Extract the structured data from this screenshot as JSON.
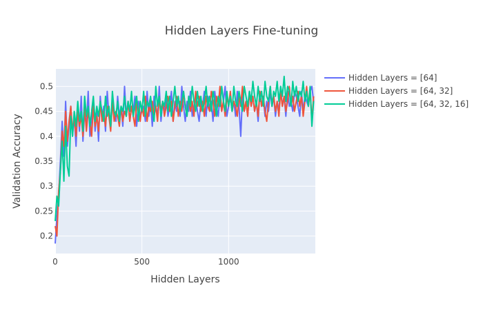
{
  "chart_data": {
    "type": "line",
    "title": "Hidden Layers Fine-tuning",
    "xlabel": "Hidden Layers",
    "ylabel": "Validation Accuracy",
    "xlim": [
      0,
      1500
    ],
    "ylim": [
      0.165,
      0.535
    ],
    "x_ticks": [
      0,
      500,
      1000
    ],
    "y_ticks": [
      0.2,
      0.25,
      0.3,
      0.35,
      0.4,
      0.45,
      0.5
    ],
    "x_tick_labels": [
      "0",
      "500",
      "1000"
    ],
    "y_tick_labels": [
      "0.2",
      "0.25",
      "0.3",
      "0.35",
      "0.4",
      "0.45",
      "0.5"
    ],
    "grid": true,
    "legend_position": "top-right",
    "background_color": "#e5ecf6",
    "x": [
      0,
      10,
      20,
      30,
      40,
      50,
      60,
      70,
      80,
      90,
      100,
      110,
      120,
      130,
      140,
      150,
      160,
      170,
      180,
      190,
      200,
      210,
      220,
      230,
      240,
      250,
      260,
      270,
      280,
      290,
      300,
      310,
      320,
      330,
      340,
      350,
      360,
      370,
      380,
      390,
      400,
      410,
      420,
      430,
      440,
      450,
      460,
      470,
      480,
      490,
      500,
      510,
      520,
      530,
      540,
      550,
      560,
      570,
      580,
      590,
      600,
      610,
      620,
      630,
      640,
      650,
      660,
      670,
      680,
      690,
      700,
      710,
      720,
      730,
      740,
      750,
      760,
      770,
      780,
      790,
      800,
      810,
      820,
      830,
      840,
      850,
      860,
      870,
      880,
      890,
      900,
      910,
      920,
      930,
      940,
      950,
      960,
      970,
      980,
      990,
      1000,
      1010,
      1020,
      1030,
      1040,
      1050,
      1060,
      1070,
      1080,
      1090,
      1100,
      1110,
      1120,
      1130,
      1140,
      1150,
      1160,
      1170,
      1180,
      1190,
      1200,
      1210,
      1220,
      1230,
      1240,
      1250,
      1260,
      1270,
      1280,
      1290,
      1300,
      1310,
      1320,
      1330,
      1340,
      1350,
      1360,
      1370,
      1380,
      1390,
      1400,
      1410,
      1420,
      1430,
      1440,
      1450,
      1460,
      1470,
      1480,
      1490
    ],
    "series": [
      {
        "name": "Hidden Layers = [64]",
        "color": "#636efa",
        "values": [
          0.185,
          0.24,
          0.28,
          0.35,
          0.43,
          0.36,
          0.47,
          0.38,
          0.42,
          0.46,
          0.4,
          0.44,
          0.38,
          0.46,
          0.41,
          0.48,
          0.39,
          0.45,
          0.42,
          0.49,
          0.4,
          0.44,
          0.47,
          0.41,
          0.45,
          0.39,
          0.48,
          0.43,
          0.46,
          0.41,
          0.49,
          0.44,
          0.42,
          0.47,
          0.45,
          0.43,
          0.48,
          0.44,
          0.46,
          0.42,
          0.5,
          0.44,
          0.47,
          0.43,
          0.46,
          0.45,
          0.48,
          0.42,
          0.47,
          0.44,
          0.45,
          0.46,
          0.43,
          0.49,
          0.44,
          0.47,
          0.42,
          0.48,
          0.46,
          0.44,
          0.5,
          0.43,
          0.47,
          0.45,
          0.48,
          0.44,
          0.46,
          0.49,
          0.43,
          0.47,
          0.45,
          0.48,
          0.44,
          0.5,
          0.46,
          0.43,
          0.47,
          0.45,
          0.49,
          0.44,
          0.46,
          0.48,
          0.45,
          0.43,
          0.47,
          0.46,
          0.49,
          0.44,
          0.48,
          0.45,
          0.47,
          0.43,
          0.49,
          0.46,
          0.44,
          0.48,
          0.45,
          0.47,
          0.5,
          0.44,
          0.46,
          0.48,
          0.45,
          0.47,
          0.44,
          0.49,
          0.46,
          0.4,
          0.48,
          0.45,
          0.47,
          0.44,
          0.49,
          0.46,
          0.48,
          0.45,
          0.47,
          0.43,
          0.49,
          0.46,
          0.48,
          0.44,
          0.47,
          0.45,
          0.49,
          0.46,
          0.48,
          0.44,
          0.47,
          0.45,
          0.5,
          0.46,
          0.48,
          0.44,
          0.49,
          0.46,
          0.47,
          0.45,
          0.49,
          0.48,
          0.46,
          0.44,
          0.49,
          0.45,
          0.48,
          0.47,
          0.46,
          0.49,
          0.5,
          0.47
        ]
      },
      {
        "name": "Hidden Layers = [64, 32]",
        "color": "#ef553b",
        "values": [
          0.22,
          0.2,
          0.29,
          0.33,
          0.41,
          0.38,
          0.45,
          0.39,
          0.43,
          0.46,
          0.41,
          0.44,
          0.4,
          0.45,
          0.42,
          0.44,
          0.4,
          0.46,
          0.41,
          0.45,
          0.43,
          0.4,
          0.46,
          0.42,
          0.44,
          0.41,
          0.47,
          0.43,
          0.45,
          0.42,
          0.46,
          0.44,
          0.41,
          0.47,
          0.43,
          0.45,
          0.44,
          0.42,
          0.46,
          0.43,
          0.45,
          0.44,
          0.47,
          0.43,
          0.46,
          0.44,
          0.42,
          0.47,
          0.45,
          0.43,
          0.46,
          0.44,
          0.48,
          0.43,
          0.46,
          0.45,
          0.47,
          0.44,
          0.46,
          0.43,
          0.48,
          0.45,
          0.47,
          0.44,
          0.46,
          0.48,
          0.45,
          0.47,
          0.43,
          0.46,
          0.48,
          0.44,
          0.47,
          0.45,
          0.49,
          0.46,
          0.44,
          0.48,
          0.45,
          0.47,
          0.44,
          0.49,
          0.46,
          0.48,
          0.45,
          0.47,
          0.44,
          0.48,
          0.46,
          0.45,
          0.49,
          0.47,
          0.44,
          0.48,
          0.46,
          0.5,
          0.45,
          0.47,
          0.44,
          0.48,
          0.46,
          0.49,
          0.45,
          0.47,
          0.46,
          0.44,
          0.48,
          0.46,
          0.5,
          0.45,
          0.47,
          0.44,
          0.49,
          0.46,
          0.48,
          0.45,
          0.47,
          0.44,
          0.49,
          0.46,
          0.48,
          0.45,
          0.43,
          0.47,
          0.5,
          0.46,
          0.48,
          0.45,
          0.47,
          0.44,
          0.49,
          0.46,
          0.48,
          0.45,
          0.47,
          0.5,
          0.46,
          0.48,
          0.45,
          0.47,
          0.49,
          0.46,
          0.48,
          0.44,
          0.47,
          0.5,
          0.46,
          0.49,
          0.43,
          0.48
        ]
      },
      {
        "name": "Hidden Layers = [64, 32, 16]",
        "color": "#00cc96",
        "values": [
          0.23,
          0.28,
          0.26,
          0.33,
          0.39,
          0.31,
          0.42,
          0.34,
          0.32,
          0.44,
          0.4,
          0.45,
          0.42,
          0.47,
          0.43,
          0.45,
          0.41,
          0.48,
          0.44,
          0.46,
          0.42,
          0.45,
          0.48,
          0.43,
          0.46,
          0.44,
          0.47,
          0.45,
          0.43,
          0.48,
          0.44,
          0.46,
          0.42,
          0.49,
          0.45,
          0.44,
          0.47,
          0.43,
          0.46,
          0.45,
          0.48,
          0.44,
          0.47,
          0.45,
          0.49,
          0.44,
          0.46,
          0.48,
          0.43,
          0.47,
          0.45,
          0.49,
          0.44,
          0.47,
          0.46,
          0.48,
          0.45,
          0.43,
          0.5,
          0.46,
          0.48,
          0.44,
          0.47,
          0.46,
          0.49,
          0.45,
          0.48,
          0.44,
          0.47,
          0.5,
          0.46,
          0.48,
          0.45,
          0.47,
          0.49,
          0.46,
          0.44,
          0.48,
          0.46,
          0.5,
          0.47,
          0.45,
          0.49,
          0.46,
          0.48,
          0.45,
          0.47,
          0.5,
          0.46,
          0.48,
          0.45,
          0.49,
          0.47,
          0.44,
          0.48,
          0.46,
          0.5,
          0.47,
          0.45,
          0.49,
          0.46,
          0.48,
          0.45,
          0.5,
          0.47,
          0.46,
          0.49,
          0.47,
          0.45,
          0.5,
          0.48,
          0.46,
          0.49,
          0.47,
          0.51,
          0.48,
          0.46,
          0.5,
          0.47,
          0.49,
          0.46,
          0.51,
          0.48,
          0.47,
          0.5,
          0.46,
          0.49,
          0.48,
          0.51,
          0.47,
          0.5,
          0.48,
          0.52,
          0.47,
          0.5,
          0.49,
          0.46,
          0.51,
          0.48,
          0.5,
          0.47,
          0.49,
          0.48,
          0.51,
          0.47,
          0.49,
          0.46,
          0.5,
          0.42,
          0.47
        ]
      }
    ]
  }
}
